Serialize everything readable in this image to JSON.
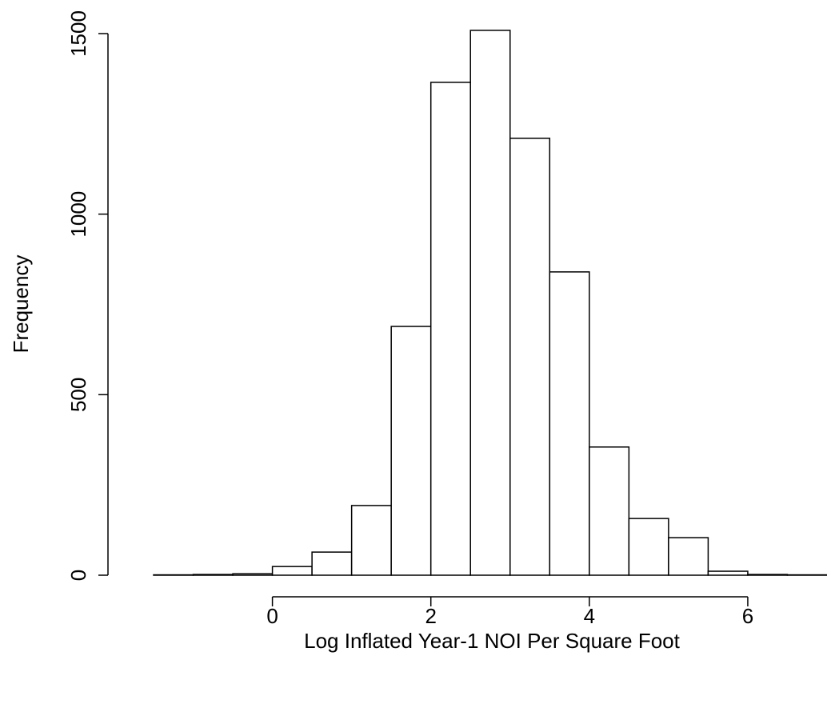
{
  "chart_data": {
    "type": "histogram",
    "xlabel": "Log Inflated Year-1 NOI Per Square Foot",
    "ylabel": "Frequency",
    "bins": [
      -1.5,
      -1,
      -0.5,
      0,
      0.5,
      1,
      1.5,
      2,
      2.5,
      3,
      3.5,
      4,
      4.5,
      5,
      5.5,
      6,
      6.5,
      7
    ],
    "values": [
      1,
      2,
      4,
      24,
      64,
      193,
      689,
      1365,
      1509,
      1210,
      840,
      355,
      157,
      104,
      11,
      2,
      1
    ],
    "color": "#ffffff",
    "xlim": [
      -1.5,
      7
    ],
    "xticks": [
      0,
      2,
      4,
      6
    ],
    "ylim": [
      0,
      1500
    ],
    "yticks": [
      0,
      500,
      1000,
      1500
    ]
  }
}
